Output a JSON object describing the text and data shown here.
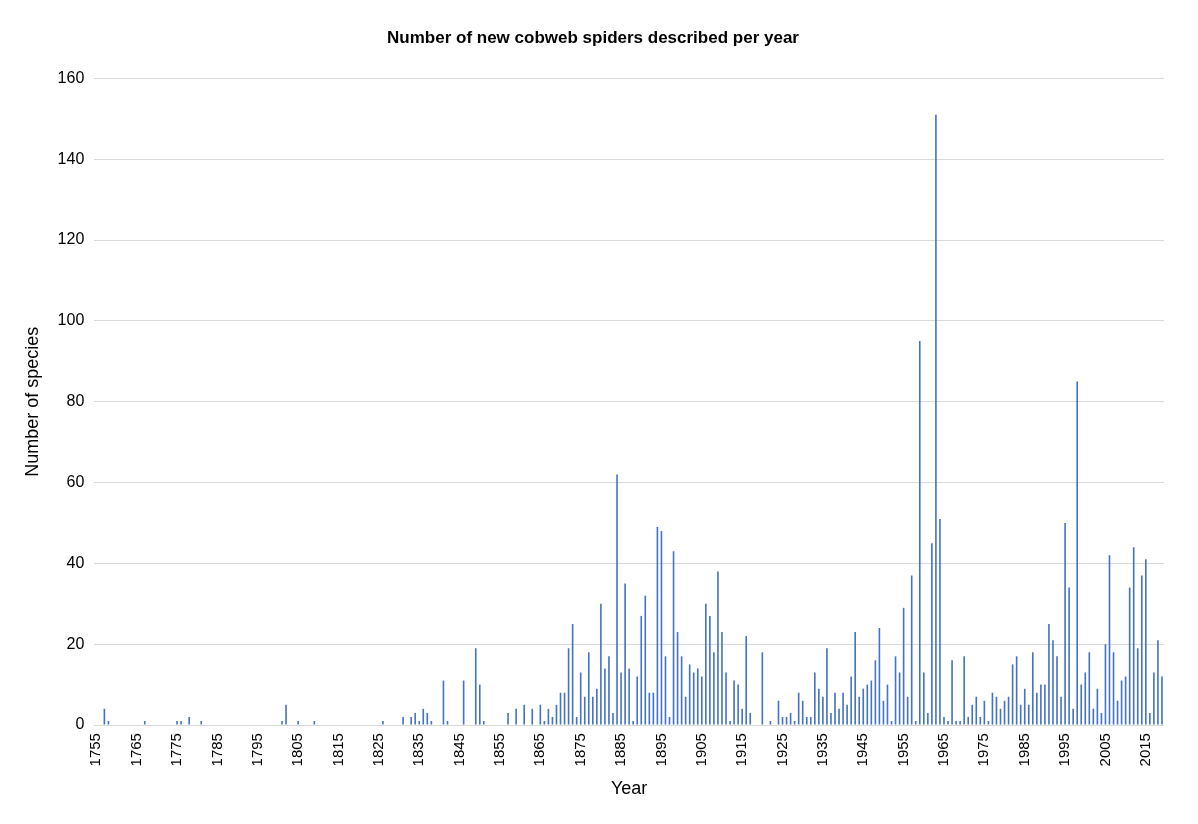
{
  "chart_data": {
    "type": "bar",
    "title": "Number of new cobweb spiders described per year",
    "xlabel": "Year",
    "ylabel": "Number of species",
    "categories": [
      "1755",
      null,
      null,
      null,
      null,
      null,
      null,
      null,
      null,
      null,
      "1765",
      null,
      null,
      null,
      null,
      null,
      null,
      null,
      null,
      null,
      "1775",
      null,
      null,
      null,
      null,
      null,
      null,
      null,
      null,
      null,
      "1785",
      null,
      null,
      null,
      null,
      null,
      null,
      null,
      null,
      null,
      "1795",
      null,
      null,
      null,
      null,
      null,
      null,
      null,
      null,
      null,
      "1805",
      null,
      null,
      null,
      null,
      null,
      null,
      null,
      null,
      null,
      "1815",
      null,
      null,
      null,
      null,
      null,
      null,
      null,
      null,
      null,
      "1825",
      null,
      null,
      null,
      null,
      null,
      null,
      null,
      null,
      null,
      "1835",
      null,
      null,
      null,
      null,
      null,
      null,
      null,
      null,
      null,
      "1845",
      null,
      null,
      null,
      null,
      null,
      null,
      null,
      null,
      null,
      "1855",
      null,
      null,
      null,
      null,
      null,
      null,
      null,
      null,
      null,
      "1865",
      null,
      null,
      null,
      null,
      null,
      null,
      null,
      null,
      null,
      "1875",
      null,
      null,
      null,
      null,
      null,
      null,
      null,
      null,
      null,
      "1885",
      null,
      null,
      null,
      null,
      null,
      null,
      null,
      null,
      null,
      "1895",
      null,
      null,
      null,
      null,
      null,
      null,
      null,
      null,
      null,
      "1905",
      null,
      null,
      null,
      null,
      null,
      null,
      null,
      null,
      null,
      "1915",
      null,
      null,
      null,
      null,
      null,
      null,
      null,
      null,
      null,
      "1925",
      null,
      null,
      null,
      null,
      null,
      null,
      null,
      null,
      null,
      "1935",
      null,
      null,
      null,
      null,
      null,
      null,
      null,
      null,
      null,
      "1945",
      null,
      null,
      null,
      null,
      null,
      null,
      null,
      null,
      null,
      "1955",
      null,
      null,
      null,
      null,
      null,
      null,
      null,
      null,
      null,
      "1965",
      null,
      null,
      null,
      null,
      null,
      null,
      null,
      null,
      null,
      "1975",
      null,
      null,
      null,
      null,
      null,
      null,
      null,
      null,
      null,
      "1985",
      null,
      null,
      null,
      null,
      null,
      null,
      null,
      null,
      null,
      "1995",
      null,
      null,
      null,
      null,
      null,
      null,
      null,
      null,
      null,
      "2005",
      null,
      null,
      null,
      null,
      null,
      null,
      null,
      null,
      null,
      "2015",
      null,
      null,
      null,
      null
    ],
    "values": [
      0,
      0,
      4,
      1,
      0,
      0,
      0,
      0,
      0,
      0,
      0,
      0,
      1,
      0,
      0,
      0,
      0,
      0,
      0,
      0,
      1,
      1,
      0,
      2,
      0,
      0,
      1,
      0,
      0,
      0,
      0,
      0,
      0,
      0,
      0,
      0,
      0,
      0,
      0,
      0,
      0,
      0,
      0,
      0,
      0,
      0,
      1,
      5,
      0,
      0,
      1,
      0,
      0,
      0,
      1,
      0,
      0,
      0,
      0,
      0,
      0,
      0,
      0,
      0,
      0,
      0,
      0,
      0,
      0,
      0,
      0,
      1,
      0,
      0,
      0,
      0,
      2,
      0,
      2,
      3,
      1,
      4,
      3,
      1,
      0,
      0,
      11,
      1,
      0,
      0,
      0,
      11,
      0,
      0,
      19,
      10,
      1,
      0,
      0,
      0,
      0,
      0,
      3,
      0,
      4,
      0,
      5,
      0,
      4,
      0,
      5,
      1,
      4,
      2,
      5,
      8,
      8,
      19,
      25,
      2,
      13,
      7,
      18,
      7,
      9,
      30,
      14,
      17,
      3,
      62,
      13,
      35,
      14,
      1,
      12,
      27,
      32,
      8,
      8,
      49,
      48,
      17,
      2,
      43,
      23,
      17,
      7,
      15,
      13,
      14,
      12,
      30,
      27,
      18,
      38,
      23,
      13,
      1,
      11,
      10,
      4,
      22,
      3,
      0,
      0,
      18,
      0,
      1,
      0,
      6,
      2,
      2,
      3,
      1,
      8,
      6,
      2,
      2,
      13,
      9,
      7,
      19,
      3,
      8,
      4,
      8,
      5,
      12,
      23,
      7,
      9,
      10,
      11,
      16,
      24,
      6,
      10,
      1,
      17,
      13,
      29,
      7,
      37,
      1,
      95,
      13,
      3,
      45,
      151,
      51,
      2,
      1,
      16,
      1,
      1,
      17,
      2,
      5,
      7,
      2,
      6,
      1,
      8,
      7,
      4,
      6,
      7,
      15,
      17,
      5,
      9,
      5,
      18,
      8,
      10,
      10,
      25,
      21,
      17,
      7,
      50,
      34,
      4,
      85,
      10,
      13,
      18,
      4,
      9,
      3,
      20,
      42,
      18,
      6,
      11,
      12,
      34,
      44,
      19,
      37,
      41,
      3,
      13,
      21,
      12
    ],
    "color": "#4472c4",
    "ylim": [
      0,
      160
    ],
    "yticks": [
      0,
      20,
      40,
      60,
      80,
      100,
      120,
      140,
      160
    ],
    "grid": "y"
  }
}
